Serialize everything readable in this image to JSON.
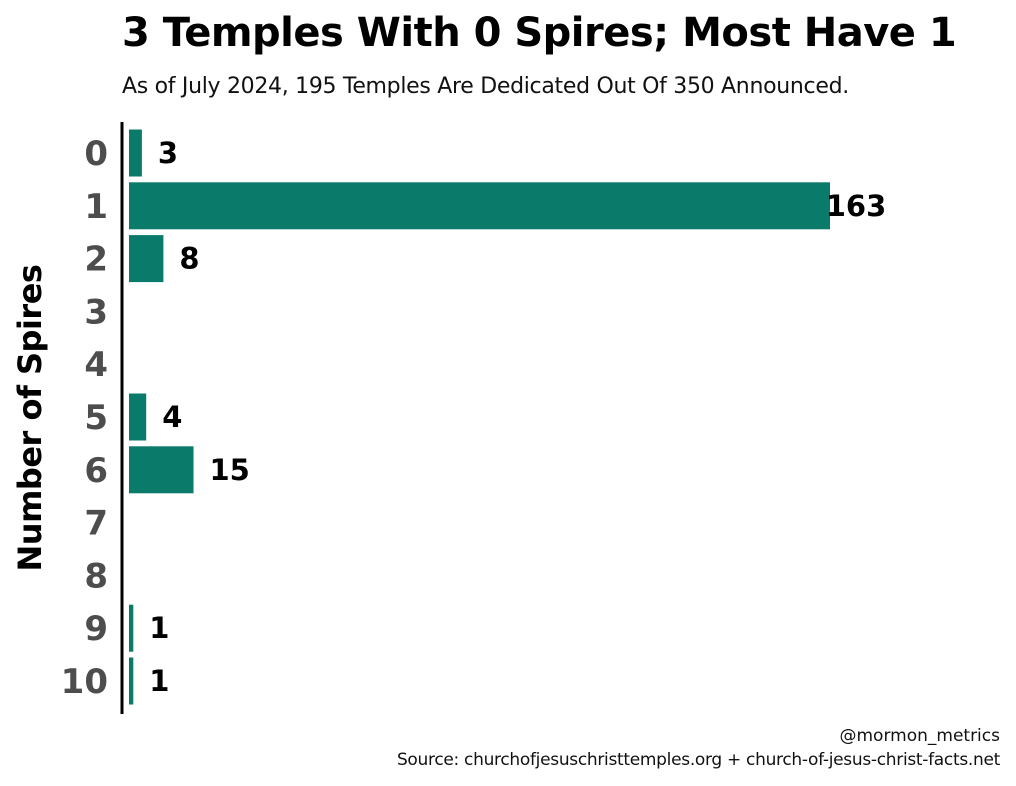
{
  "chart_data": {
    "type": "bar",
    "orientation": "horizontal",
    "title": "3 Temples With 0 Spires; Most Have 1",
    "subtitle": "As of July 2024, 195 Temples Are Dedicated Out Of 350 Announced.",
    "ylabel": "Number of Spires",
    "xlabel": "",
    "categories": [
      "0",
      "1",
      "2",
      "3",
      "4",
      "5",
      "6",
      "7",
      "8",
      "9",
      "10"
    ],
    "values": [
      3,
      163,
      8,
      null,
      null,
      4,
      15,
      null,
      null,
      1,
      1
    ],
    "data_labels": [
      "3",
      "163",
      "8",
      "",
      "",
      "4",
      "15",
      "",
      "",
      "1",
      "1"
    ],
    "xlim": [
      0,
      163
    ],
    "bar_color": "#0a7a6a",
    "grid": false,
    "legend": "none"
  },
  "credits": {
    "handle": "@mormon_metrics",
    "source": "Source: churchofjesuschristtemples.org + church-of-jesus-christ-facts.net"
  }
}
